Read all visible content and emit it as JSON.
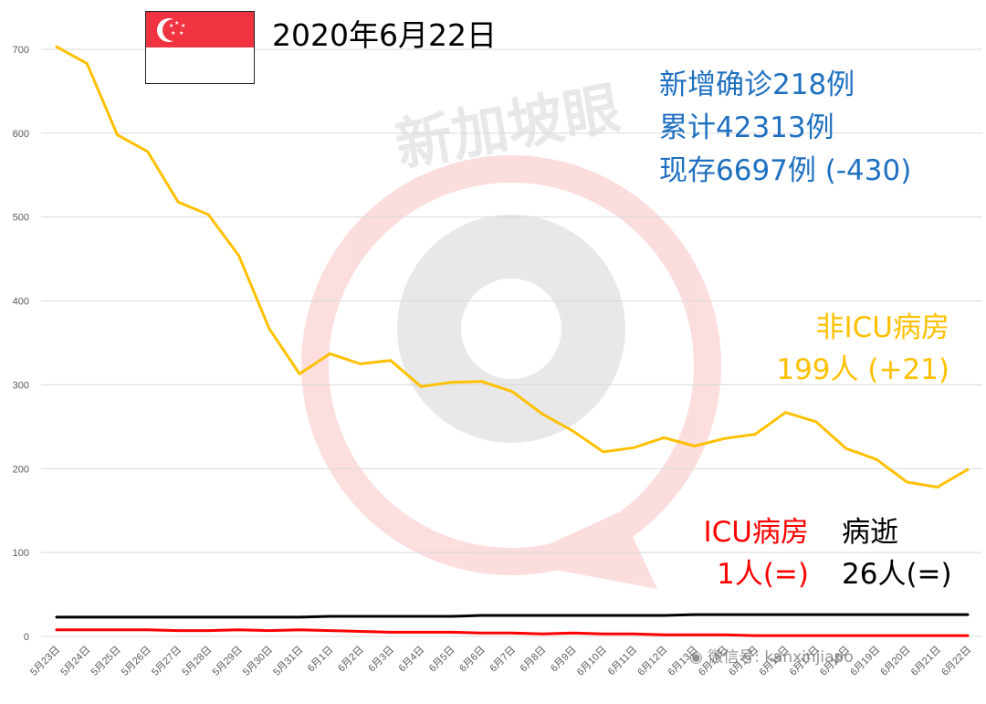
{
  "header": {
    "date": "2020年6月22日",
    "new_cases": "新增确诊218例",
    "cumulative": "累计42313例",
    "active": "现存6697例 (-430)"
  },
  "annotations": {
    "non_icu_label": "非ICU病房",
    "non_icu_value": "199人 (+21)",
    "icu_label": "ICU病房",
    "icu_value": "1人(=)",
    "deaths_label": "病逝",
    "deaths_value": "26人(=)"
  },
  "watermark": {
    "logo_text": "新加坡眼",
    "wechat": "微信号: kanxinjiapo"
  },
  "colors": {
    "flag_red": "#EF3340",
    "stats_blue": "#1F70C1",
    "non_icu": "#FFC000",
    "icu": "#FF0000",
    "deaths": "#000000",
    "grid": "#D9D9D9"
  },
  "chart_data": {
    "type": "line",
    "title": "",
    "xlabel": "",
    "ylabel": "",
    "ylim": [
      0,
      700
    ],
    "yticks": [
      0,
      100,
      200,
      300,
      400,
      500,
      600,
      700
    ],
    "grid": true,
    "legend": "none",
    "categories": [
      "5月23日",
      "5月24日",
      "5月25日",
      "5月26日",
      "5月27日",
      "5月28日",
      "5月29日",
      "5月30日",
      "5月31日",
      "6月1日",
      "6月2日",
      "6月3日",
      "6月4日",
      "6月5日",
      "6月6日",
      "6月7日",
      "6月8日",
      "6月9日",
      "6月10日",
      "6月11日",
      "6月12日",
      "6月13日",
      "6月14日",
      "6月15日",
      "6月16日",
      "6月17日",
      "6月18日",
      "6月19日",
      "6月20日",
      "6月21日",
      "6月22日"
    ],
    "series": [
      {
        "key": "non_icu",
        "color": "#FFC000",
        "values": [
          703,
          683,
          598,
          578,
          518,
          503,
          454,
          367,
          313,
          337,
          325,
          329,
          298,
          303,
          304,
          292,
          265,
          245,
          220,
          225,
          237,
          227,
          236,
          241,
          267,
          256,
          224,
          211,
          184,
          178,
          199
        ]
      },
      {
        "key": "icu",
        "color": "#FF0000",
        "values": [
          8,
          8,
          8,
          8,
          7,
          7,
          8,
          7,
          8,
          7,
          6,
          5,
          5,
          5,
          4,
          4,
          3,
          4,
          3,
          3,
          2,
          2,
          2,
          1,
          1,
          1,
          1,
          1,
          1,
          1,
          1
        ]
      },
      {
        "key": "deaths",
        "color": "#000000",
        "values": [
          23,
          23,
          23,
          23,
          23,
          23,
          23,
          23,
          23,
          24,
          24,
          24,
          24,
          24,
          25,
          25,
          25,
          25,
          25,
          25,
          25,
          26,
          26,
          26,
          26,
          26,
          26,
          26,
          26,
          26,
          26
        ]
      }
    ]
  }
}
